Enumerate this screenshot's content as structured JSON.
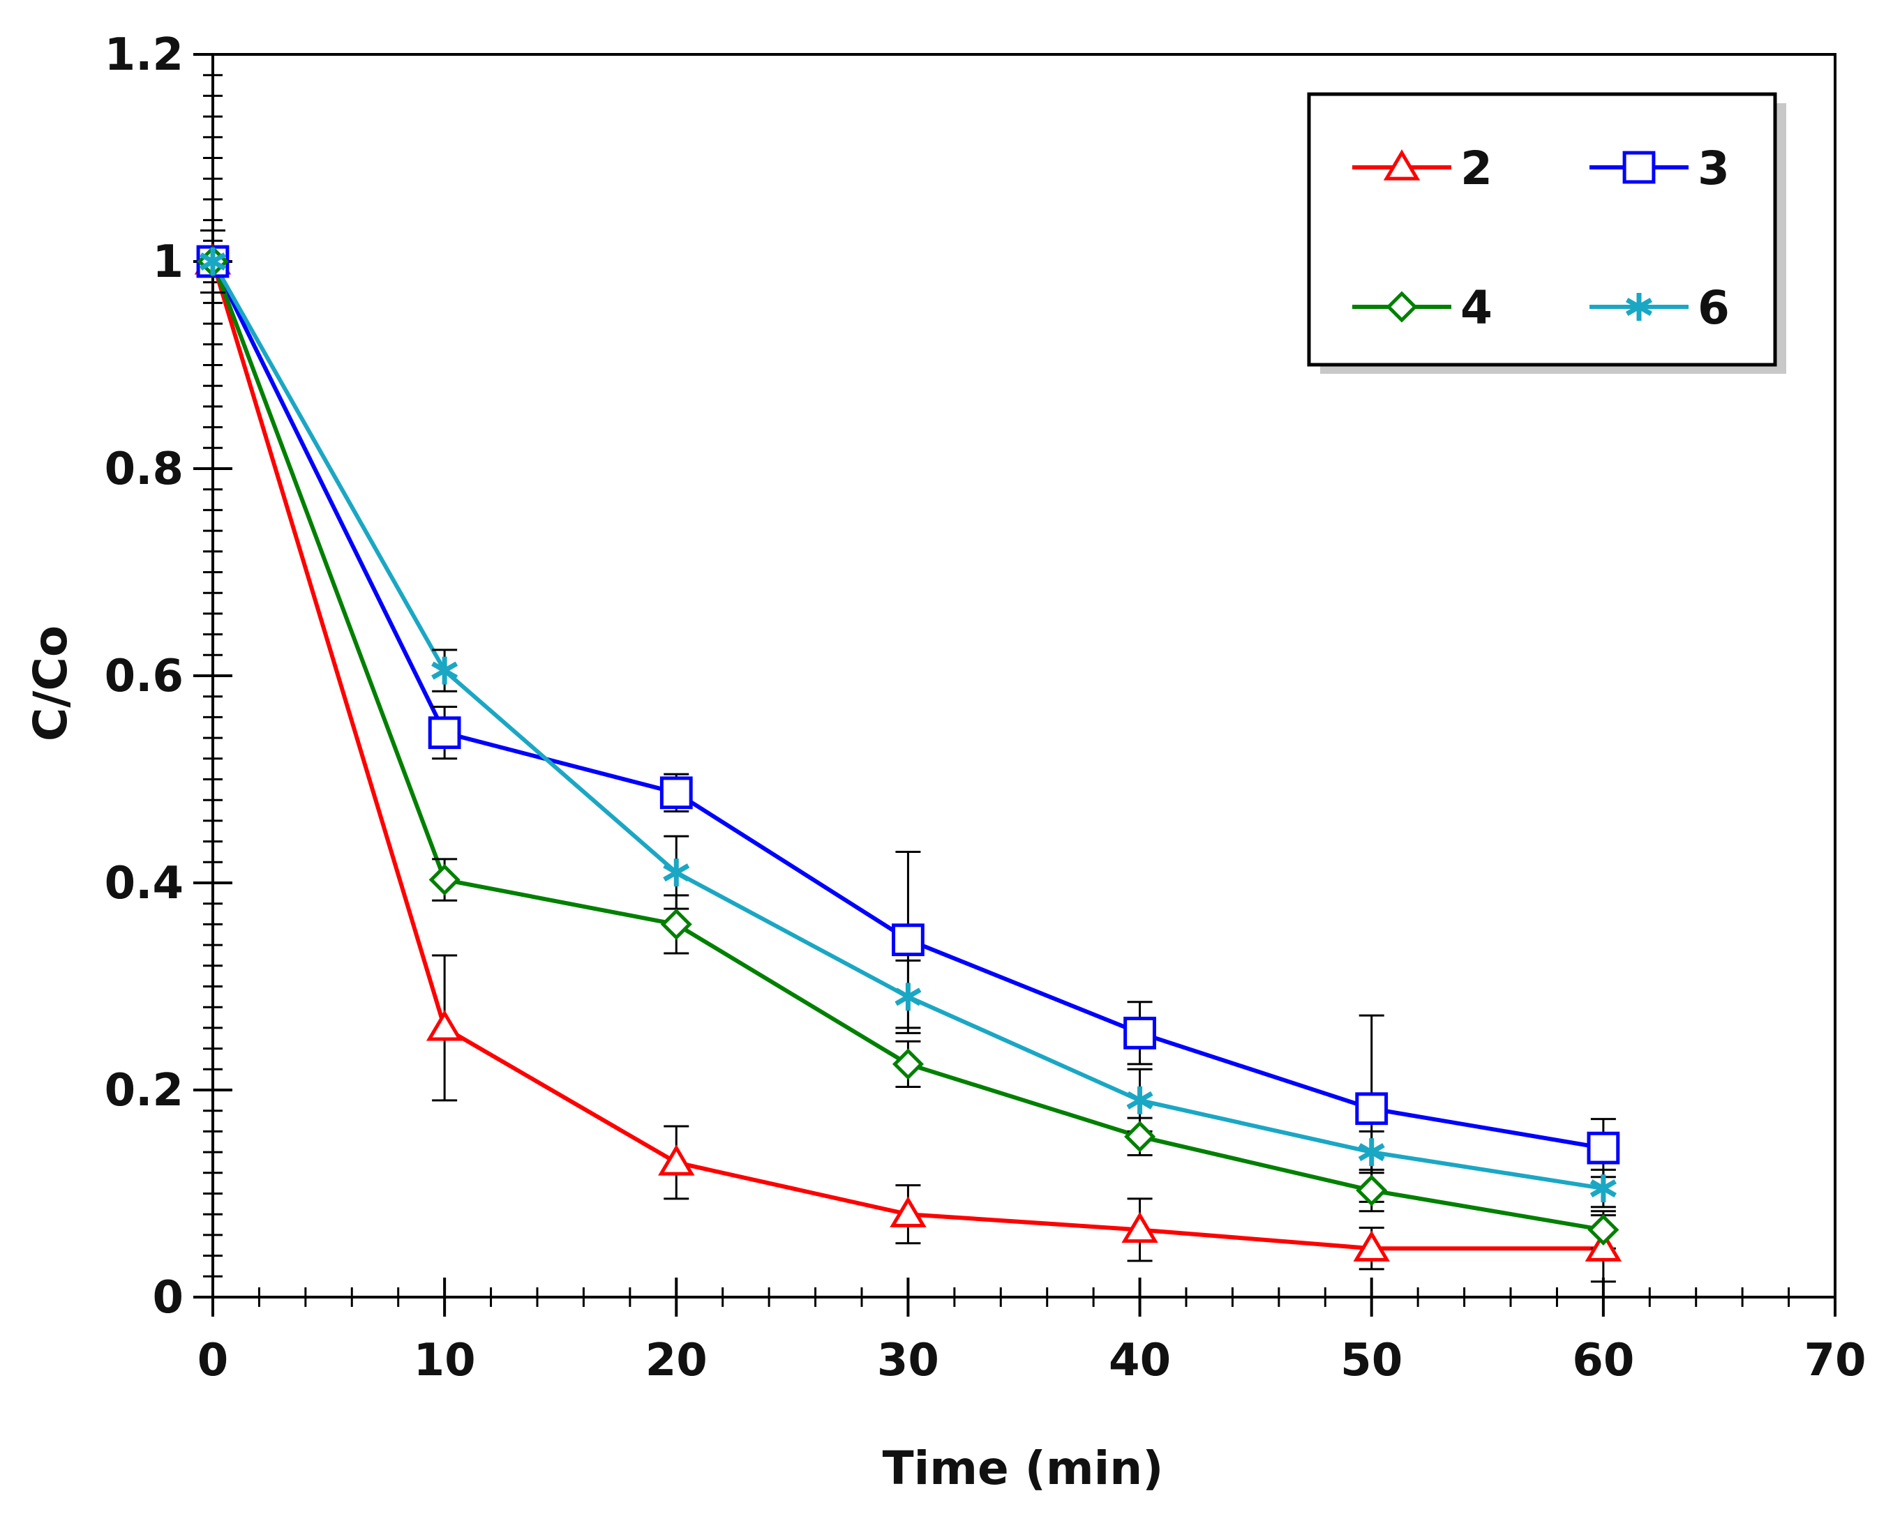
{
  "chart_data": {
    "type": "line",
    "title": "",
    "xlabel": "Time (min)",
    "ylabel": "C/Co",
    "xlim": [
      0,
      70
    ],
    "ylim": [
      0,
      1.2
    ],
    "x_ticks": [
      0,
      10,
      20,
      30,
      40,
      50,
      60,
      70
    ],
    "y_ticks": [
      0,
      0.2,
      0.4,
      0.6,
      0.8,
      1,
      1.2
    ],
    "x_tick_labels": [
      "0",
      "10",
      "20",
      "30",
      "40",
      "50",
      "60",
      "70"
    ],
    "y_tick_labels": [
      "0",
      "0.2",
      "0.4",
      "0.6",
      "0.8",
      "1",
      "1.2"
    ],
    "grid": false,
    "legend_position": "top-right",
    "x": [
      0,
      10,
      20,
      30,
      40,
      50,
      60
    ],
    "series": [
      {
        "name": "2",
        "color": "#ff0000",
        "marker": "triangle",
        "values": [
          1.0,
          0.26,
          0.13,
          0.08,
          0.065,
          0.047,
          0.047
        ],
        "errors": [
          0.03,
          0.07,
          0.035,
          0.028,
          0.03,
          0.02,
          0.032
        ]
      },
      {
        "name": "3",
        "color": "#0000ff",
        "marker": "square",
        "values": [
          1.0,
          0.545,
          0.487,
          0.345,
          0.255,
          0.182,
          0.144
        ],
        "errors": [
          0.03,
          0.025,
          0.018,
          0.085,
          0.03,
          0.09,
          0.028
        ]
      },
      {
        "name": "4",
        "color": "#008000",
        "marker": "diamond",
        "values": [
          1.0,
          0.403,
          0.36,
          0.225,
          0.155,
          0.103,
          0.065
        ],
        "errors": [
          0.03,
          0.02,
          0.028,
          0.022,
          0.018,
          0.02,
          0.018
        ]
      },
      {
        "name": "6",
        "color": "#1aa7c4",
        "marker": "asterisk",
        "values": [
          1.0,
          0.605,
          0.41,
          0.29,
          0.19,
          0.14,
          0.105
        ],
        "errors": [
          0.03,
          0.02,
          0.035,
          0.035,
          0.03,
          0.02,
          0.018
        ]
      }
    ]
  }
}
